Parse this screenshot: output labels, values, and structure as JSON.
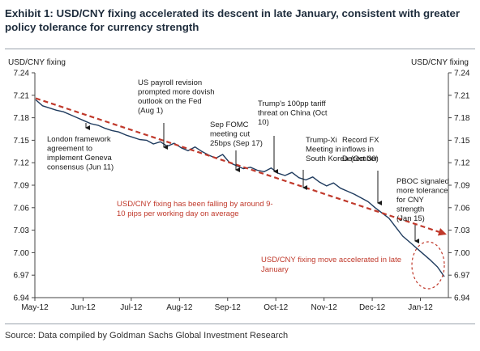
{
  "title": "Exhibit 1: USD/CNY fixing accelerated its descent in late January, consistent with greater policy tolerance for currency strength",
  "source": "Source: Data compiled by Goldman Sachs Global Investment Research",
  "chart_data": {
    "type": "line",
    "ylabel_left": "USD/CNY fixing",
    "ylabel_right": "USD/CNY fixing",
    "ylim": [
      6.94,
      7.24
    ],
    "yticks": [
      "7.24",
      "7.21",
      "7.18",
      "7.15",
      "7.12",
      "7.09",
      "7.06",
      "7.03",
      "7.00",
      "6.97",
      "6.94"
    ],
    "xticks": [
      "May-12",
      "Jun-12",
      "Jul-12",
      "Aug-12",
      "Sep-12",
      "Oct-12",
      "Nov-12",
      "Dec-12",
      "Jan-12"
    ],
    "grid": false,
    "series": [
      {
        "color": "#1f3b5e",
        "values": [
          7.204,
          7.196,
          7.193,
          7.19,
          7.188,
          7.184,
          7.18,
          7.176,
          7.172,
          7.17,
          7.166,
          7.163,
          7.161,
          7.157,
          7.154,
          7.151,
          7.15,
          7.145,
          7.148,
          7.142,
          7.146,
          7.14,
          7.136,
          7.141,
          7.135,
          7.13,
          7.126,
          7.131,
          7.12,
          7.116,
          7.112,
          7.114,
          7.11,
          7.108,
          7.113,
          7.106,
          7.103,
          7.107,
          7.1,
          7.097,
          7.101,
          7.094,
          7.089,
          7.093,
          7.086,
          7.082,
          7.078,
          7.073,
          7.068,
          7.06,
          7.053,
          7.046,
          7.034,
          7.022,
          7.014,
          7.006,
          6.998,
          6.99,
          6.981,
          6.968
        ]
      },
      {
        "name": "trend",
        "color": "#c0392b",
        "style": "dashed",
        "values": [
          7.206,
          7.025
        ]
      }
    ],
    "annotations": [
      {
        "text": [
          "London framework",
          "agreement to",
          "implement Geneva",
          "consensus (Jun 11)"
        ],
        "color": "#1a1a1a"
      },
      {
        "text": [
          "US payroll revision",
          "prompted more dovish",
          "outlook on the Fed",
          "(Aug 1)"
        ],
        "color": "#1a1a1a"
      },
      {
        "text": [
          "Sep FOMC",
          "meeting cut",
          "25bps (Sep 17)"
        ],
        "color": "#1a1a1a"
      },
      {
        "text": [
          "Trump's 100pp tariff",
          "threat on China (Oct",
          "10)"
        ],
        "color": "#1a1a1a"
      },
      {
        "text": [
          "Trump-Xi",
          "Meeting in",
          "South Korea (Oct 30)"
        ],
        "color": "#1a1a1a"
      },
      {
        "text": [
          "Record FX",
          "inflows in",
          "December"
        ],
        "color": "#1a1a1a"
      },
      {
        "text": [
          "PBOC signaled",
          "more tolerance",
          "for CNY",
          "strength",
          "(Jan 15)"
        ],
        "color": "#1a1a1a"
      },
      {
        "text": [
          "USD/CNY fixing has been falling by around 9-",
          "10 pips per working day on average"
        ],
        "color": "#c0392b"
      },
      {
        "text": [
          "USD/CNY fixing move accelerated in late",
          "January"
        ],
        "color": "#c0392b"
      }
    ]
  }
}
